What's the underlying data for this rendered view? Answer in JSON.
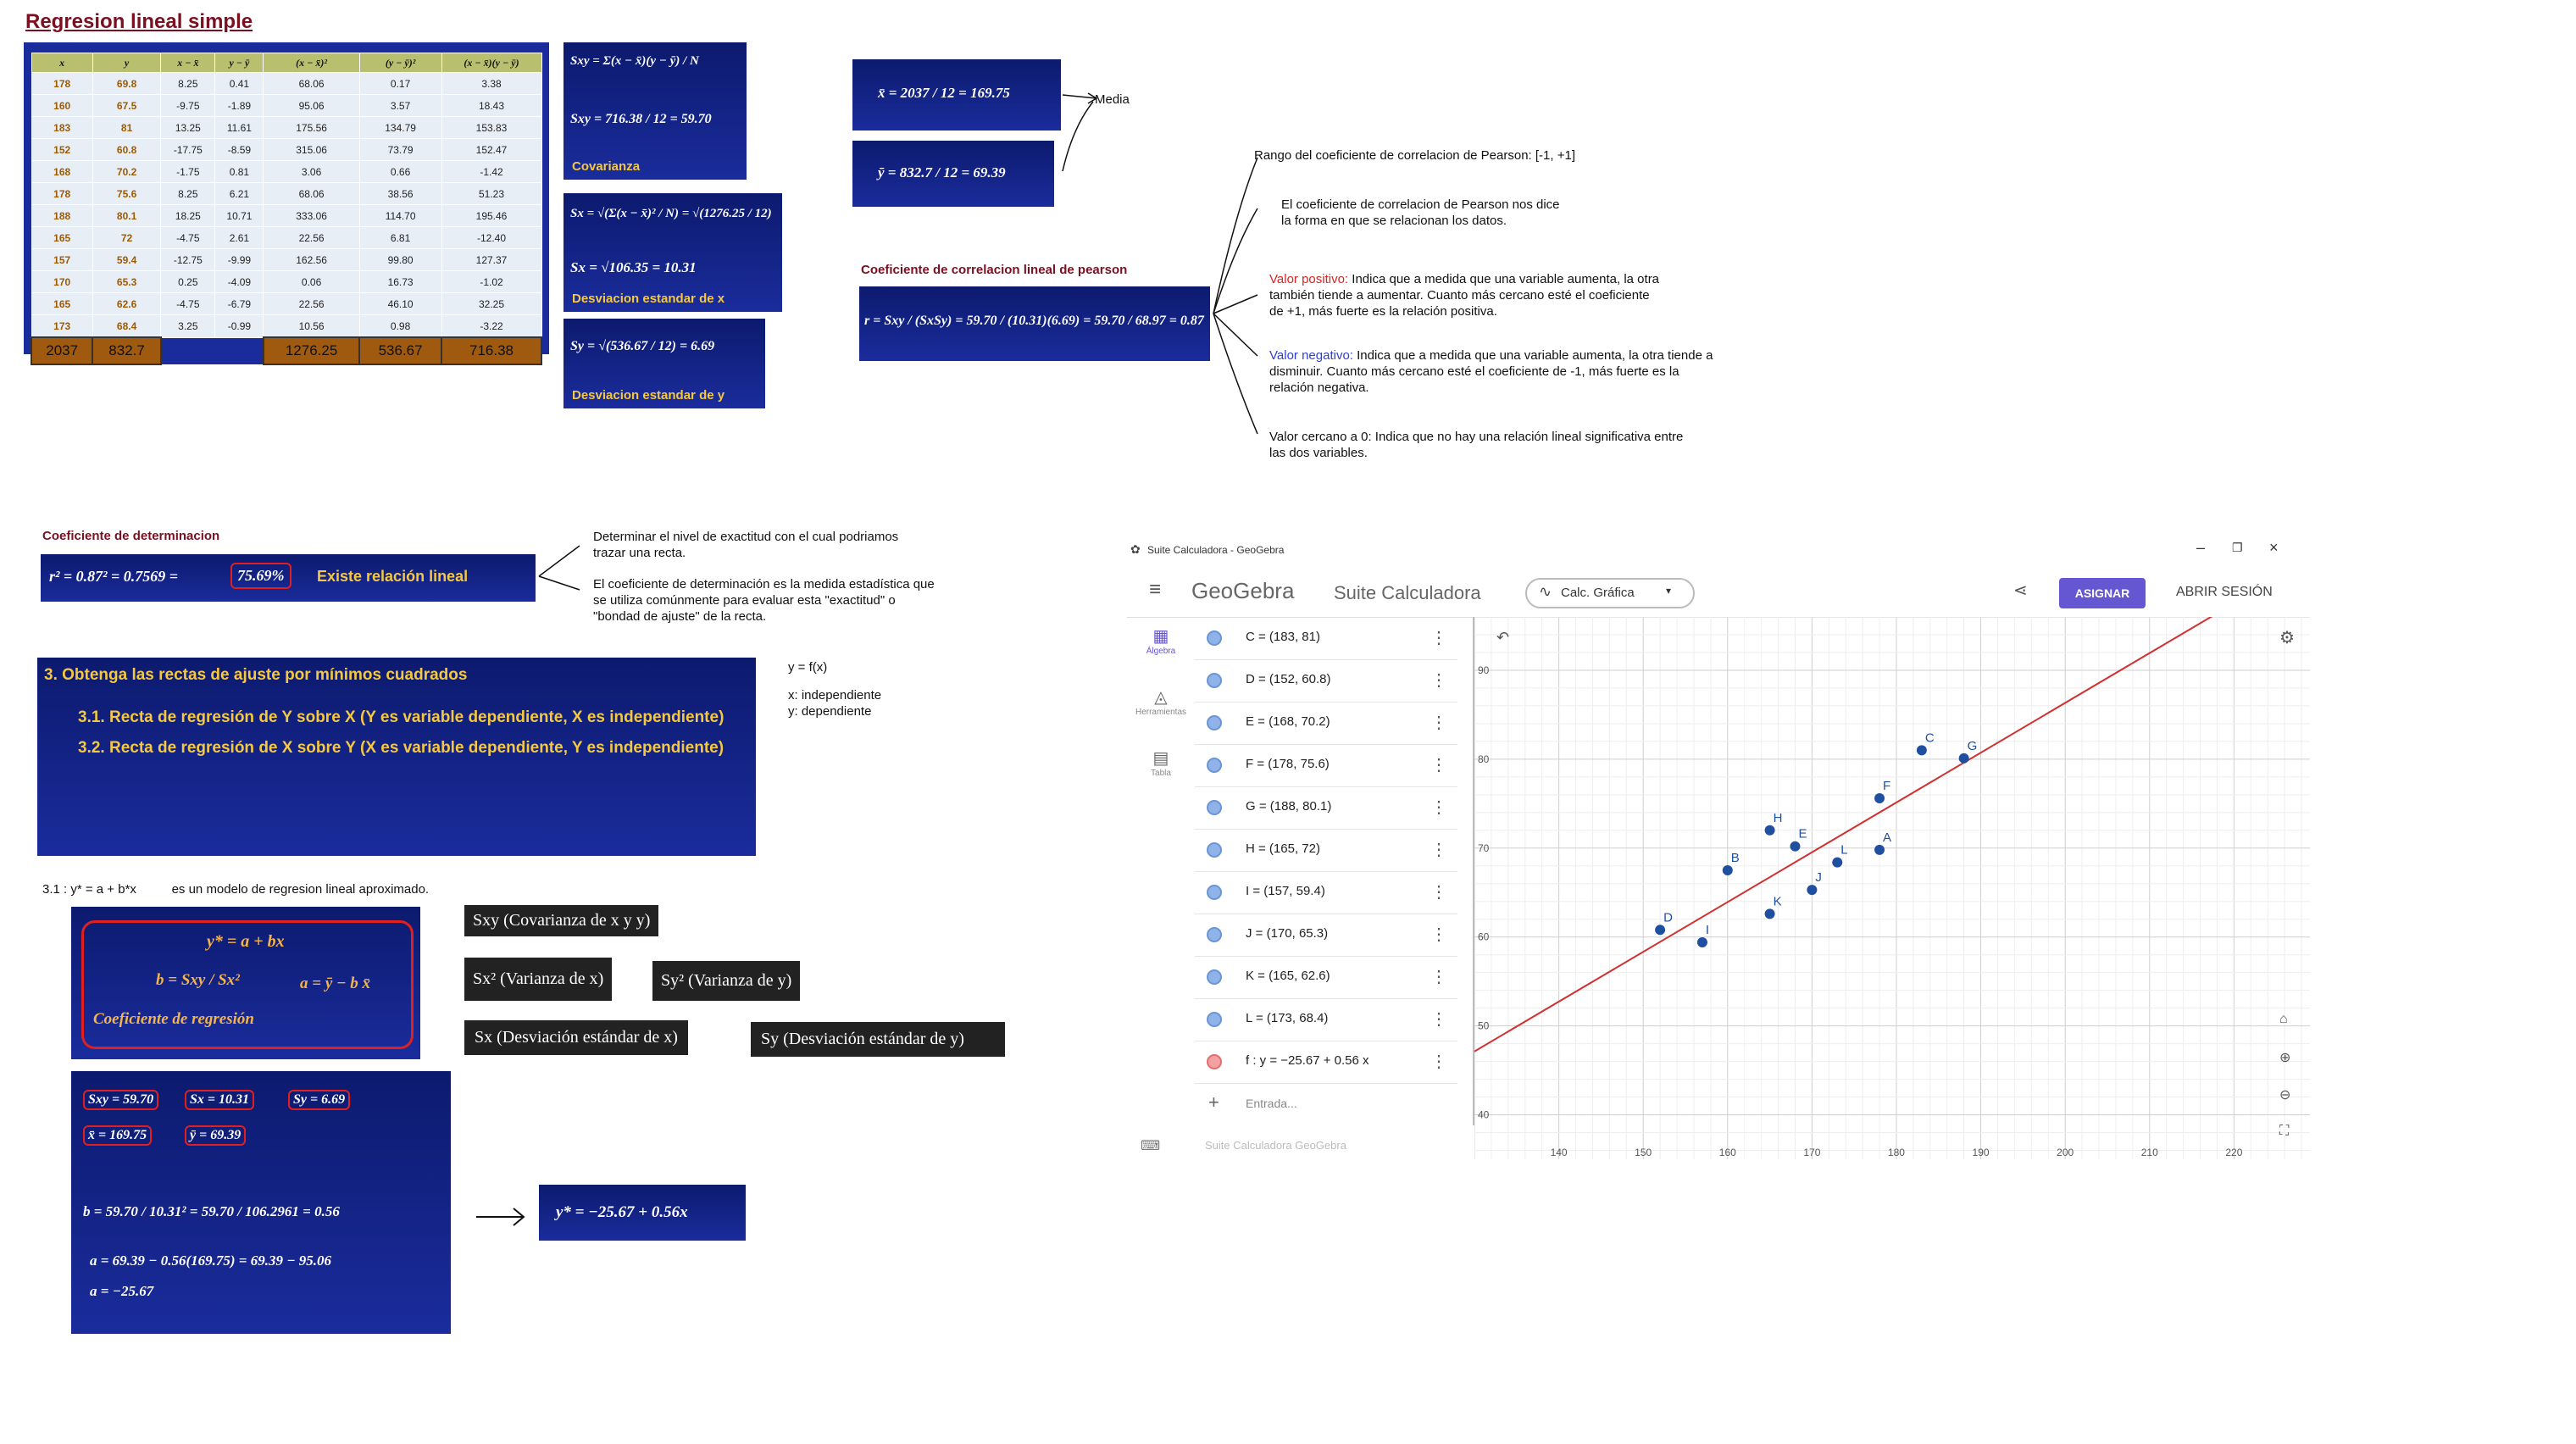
{
  "page_title": "Regresion lineal simple",
  "table": {
    "headers": [
      "x",
      "y",
      "x − x̄",
      "y − ȳ",
      "(x − x̄)²",
      "(y − ȳ)²",
      "(x − x̄)(y − ȳ)"
    ],
    "rows": [
      [
        "178",
        "69.8",
        "8.25",
        "0.41",
        "68.06",
        "0.17",
        "3.38"
      ],
      [
        "160",
        "67.5",
        "-9.75",
        "-1.89",
        "95.06",
        "3.57",
        "18.43"
      ],
      [
        "183",
        "81",
        "13.25",
        "11.61",
        "175.56",
        "134.79",
        "153.83"
      ],
      [
        "152",
        "60.8",
        "-17.75",
        "-8.59",
        "315.06",
        "73.79",
        "152.47"
      ],
      [
        "168",
        "70.2",
        "-1.75",
        "0.81",
        "3.06",
        "0.66",
        "-1.42"
      ],
      [
        "178",
        "75.6",
        "8.25",
        "6.21",
        "68.06",
        "38.56",
        "51.23"
      ],
      [
        "188",
        "80.1",
        "18.25",
        "10.71",
        "333.06",
        "114.70",
        "195.46"
      ],
      [
        "165",
        "72",
        "-4.75",
        "2.61",
        "22.56",
        "6.81",
        "-12.40"
      ],
      [
        "157",
        "59.4",
        "-12.75",
        "-9.99",
        "162.56",
        "99.80",
        "127.37"
      ],
      [
        "170",
        "65.3",
        "0.25",
        "-4.09",
        "0.06",
        "16.73",
        "-1.02"
      ],
      [
        "165",
        "62.6",
        "-4.75",
        "-6.79",
        "22.56",
        "46.10",
        "32.25"
      ],
      [
        "173",
        "68.4",
        "3.25",
        "-0.99",
        "10.56",
        "0.98",
        "-3.22"
      ]
    ],
    "totals": [
      "2037",
      "832.7",
      "1276.25",
      "536.67",
      "716.38"
    ]
  },
  "cov_box": {
    "line1": "Sxy = Σ(x − x̄)(y − ȳ) / N",
    "line2": "Sxy = 716.38 / 12 = 59.70",
    "label": "Covarianza"
  },
  "sx_box": {
    "line1": "Sx = √(Σ(x − x̄)² / N) = √(1276.25 / 12)",
    "line2": "Sx = √106.35 = 10.31",
    "label": "Desviacion estandar de x"
  },
  "sy_box": {
    "line1": "Sy = √(536.67 / 12) = 6.69",
    "label": "Desviacion estandar de y"
  },
  "mean_x": "x̄ = 2037 / 12 = 169.75",
  "mean_y": "ȳ = 832.7 / 12 = 69.39",
  "media_label": "Media",
  "pearson": {
    "heading": "Coeficiente de correlacion lineal de pearson",
    "formula": "r = Sxy / (SxSy) = 59.70 / (10.31)(6.69) = 59.70 / 68.97 = 0.87",
    "range": "Rango del coeficiente de correlacion de Pearson: [-1, +1]",
    "desc1": "El coeficiente de correlacion de Pearson nos dice",
    "desc2": "la forma en que se relacionan los datos.",
    "pos_label": "Valor positivo:",
    "pos_text1": "Indica que a medida que una variable aumenta, la otra",
    "pos_text2": "también tiende a aumentar. Cuanto más cercano esté el coeficiente",
    "pos_text3": "de +1, más fuerte es la relación positiva.",
    "neg_label": "Valor negativo:",
    "neg_text1": "Indica que a medida que una variable aumenta, la otra tiende a",
    "neg_text2": "disminuir. Cuanto más cercano esté el coeficiente de -1, más fuerte es la",
    "neg_text3": "relación negativa.",
    "zero_text1": "Valor cercano a 0: Indica que no hay una relación lineal significativa entre",
    "zero_text2": "las dos variables."
  },
  "determination": {
    "heading": "Coeficiente de determinacion",
    "formula": "r² = 0.87² = 0.7569 =",
    "percent": "75.69%",
    "label": "Existe relación lineal",
    "note1a": "Determinar el nivel de exactitud con el cual podriamos",
    "note1b": "trazar una recta.",
    "note2a": "El coeficiente de determinación es la medida estadística que",
    "note2b": "se utiliza comúnmente para evaluar esta \"exactitud\" o",
    "note2c": "\"bondad de ajuste\" de la recta."
  },
  "task": {
    "title": "3. Obtenga las rectas de ajuste por mínimos cuadrados",
    "item1": "3.1. Recta de regresión de Y sobre X (Y es variable dependiente, X es independiente)",
    "item2": "3.2. Recta de regresión de X sobre Y (X es variable dependiente, Y es independiente)"
  },
  "fx_note": {
    "l1": "y = f(x)",
    "l2": "x: independiente",
    "l3": "y: dependiente"
  },
  "model_note": "3.1 : y* = a + b*x          es un modelo de regresion lineal aproximado.",
  "reg_box": {
    "eq": "y* = a + bx",
    "b": "b = Sxy / Sx²",
    "a": "a = ȳ − b x̄",
    "label": "Coeficiente de regresión"
  },
  "chips": {
    "sxy": "Sxy (Covarianza de x y y)",
    "sx2": "Sx² (Varianza de x)",
    "sy2": "Sy² (Varianza de y)",
    "sx": "Sx (Desviación estándar de x)",
    "sy": "Sy (Desviación estándar de y)"
  },
  "calc_box": {
    "sxy": "Sxy = 59.70",
    "sx": "Sx = 10.31",
    "sy": "Sy = 6.69",
    "xbar": "x̄ = 169.75",
    "ybar": "ȳ = 69.39",
    "b": "b = 59.70 / 10.31² = 59.70 / 106.2961 = 0.56",
    "a1": "a = 69.39 − 0.56(169.75) = 69.39 − 95.06",
    "a2": "a = −25.67"
  },
  "result": "y* = −25.67 + 0.56x",
  "geogebra": {
    "window_title": "Suite Calculadora - GeoGebra",
    "brand": "GeoGebra",
    "app_name": "Suite Calculadora",
    "mode": "Calc. Gráfica",
    "assign": "ASIGNAR",
    "login": "ABRIR SESIÓN",
    "nav": [
      "Álgebra",
      "Herramientas",
      "Tabla"
    ],
    "rows": [
      "C = (183, 81)",
      "D = (152, 60.8)",
      "E = (168, 70.2)",
      "F = (178, 75.6)",
      "G = (188, 80.1)",
      "H = (165, 72)",
      "I = (157, 59.4)",
      "J = (170, 65.3)",
      "K = (165, 62.6)",
      "L = (173, 68.4)",
      "f : y = −25.67 + 0.56 x"
    ],
    "input_placeholder": "Entrada...",
    "footer": "Suite Calculadora GeoGebra",
    "x_ticks": [
      "140",
      "150",
      "160",
      "170",
      "180",
      "190",
      "200",
      "210",
      "220"
    ],
    "y_ticks": [
      "90",
      "80",
      "70",
      "60",
      "50",
      "40"
    ]
  },
  "chart_data": {
    "type": "scatter",
    "points": [
      {
        "label": "A",
        "x": 178,
        "y": 69.8
      },
      {
        "label": "B",
        "x": 160,
        "y": 67.5
      },
      {
        "label": "C",
        "x": 183,
        "y": 81
      },
      {
        "label": "D",
        "x": 152,
        "y": 60.8
      },
      {
        "label": "E",
        "x": 168,
        "y": 70.2
      },
      {
        "label": "F",
        "x": 178,
        "y": 75.6
      },
      {
        "label": "G",
        "x": 188,
        "y": 80.1
      },
      {
        "label": "H",
        "x": 165,
        "y": 72
      },
      {
        "label": "I",
        "x": 157,
        "y": 59.4
      },
      {
        "label": "J",
        "x": 170,
        "y": 65.3
      },
      {
        "label": "K",
        "x": 165,
        "y": 62.6
      },
      {
        "label": "L",
        "x": 173,
        "y": 68.4
      }
    ],
    "line": {
      "intercept": -25.67,
      "slope": 0.56
    },
    "xlim": [
      130,
      229
    ],
    "ylim": [
      35,
      96
    ],
    "grid": true,
    "point_color": "#1f4f9f",
    "line_color": "#d03030"
  }
}
